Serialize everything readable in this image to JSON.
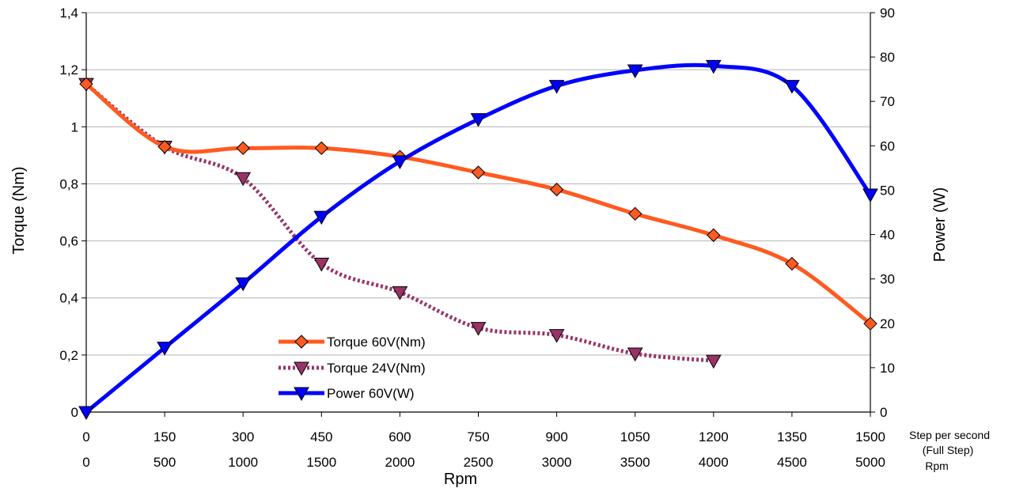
{
  "chart_data": {
    "type": "line",
    "x": [
      0,
      150,
      300,
      450,
      600,
      750,
      900,
      1050,
      1200,
      1350,
      1500
    ],
    "x_tick_labels": [
      "0",
      "150",
      "300",
      "450",
      "600",
      "750",
      "900",
      "1050",
      "1200",
      "1350",
      "1500"
    ],
    "x2_tick_labels": [
      "0",
      "500",
      "1000",
      "1500",
      "2000",
      "2500",
      "3000",
      "3500",
      "4000",
      "4500",
      "5000"
    ],
    "xlim": [
      0,
      1500
    ],
    "xlabel": "Rpm",
    "x_unit_label_1": "Step per second",
    "x_unit_label_2": "(Full Step)",
    "x_unit_label_3": "Rpm",
    "ylabel": "Torque (Nm)",
    "ylim": [
      0,
      1.4
    ],
    "y_ticks": [
      0,
      0.2,
      0.4,
      0.6,
      0.8,
      1,
      1.2,
      1.4
    ],
    "y_tick_labels": [
      "0",
      "0,2",
      "0,4",
      "0,6",
      "0,8",
      "1",
      "1,2",
      "1,4"
    ],
    "y2label": "Power (W)",
    "y2lim": [
      0,
      90
    ],
    "y2_ticks": [
      0,
      10,
      20,
      30,
      40,
      50,
      60,
      70,
      80,
      90
    ],
    "y2_tick_labels": [
      "0",
      "10",
      "20",
      "30",
      "40",
      "50",
      "60",
      "70",
      "80",
      "90"
    ],
    "grid": "horizontal",
    "legend_position": "bottom-center",
    "series": [
      {
        "name": "Torque 60V(Nm)",
        "axis": "left",
        "color": "#ff5a1f",
        "marker": "diamond",
        "line_style": "solid",
        "x": [
          0,
          150,
          300,
          450,
          600,
          750,
          900,
          1050,
          1200,
          1350,
          1500
        ],
        "values": [
          1.15,
          0.93,
          0.925,
          0.925,
          0.895,
          0.84,
          0.78,
          0.695,
          0.62,
          0.52,
          0.31
        ]
      },
      {
        "name": "Torque 24V(Nm)",
        "axis": "left",
        "color": "#993366",
        "marker": "triangle-down",
        "line_style": "dotted",
        "x": [
          0,
          150,
          300,
          450,
          600,
          750,
          900,
          1050,
          1200
        ],
        "values": [
          1.15,
          0.93,
          0.82,
          0.52,
          0.42,
          0.295,
          0.27,
          0.205,
          0.18
        ]
      },
      {
        "name": "Power 60V(W)",
        "axis": "right",
        "color": "#0000ff",
        "marker": "triangle-down",
        "line_style": "solid",
        "x": [
          0,
          150,
          300,
          450,
          600,
          750,
          900,
          1050,
          1200,
          1350,
          1500
        ],
        "values": [
          0,
          14.5,
          29,
          44,
          56.5,
          66,
          73.5,
          77,
          78,
          73.5,
          49
        ]
      }
    ]
  }
}
